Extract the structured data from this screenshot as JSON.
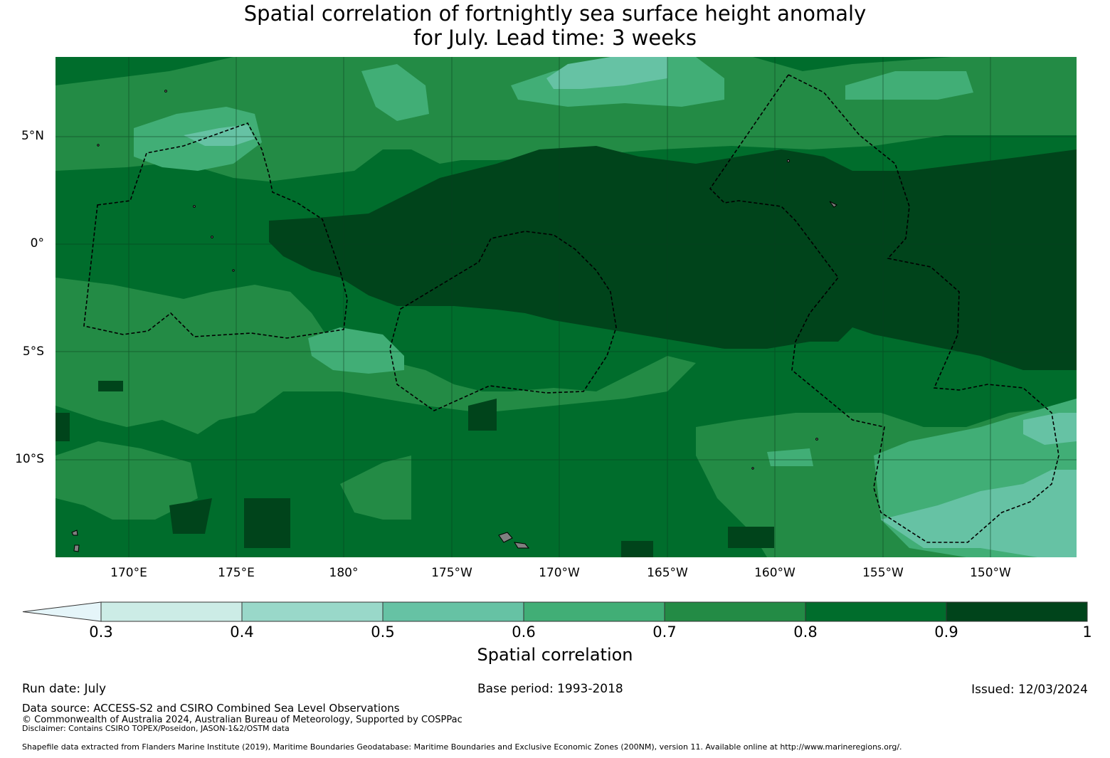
{
  "title": {
    "line1": "Spatial correlation of fortnightly sea surface height anomaly",
    "line2": "for July. Lead time: 3 weeks"
  },
  "map": {
    "lat_labels": [
      "5°N",
      "0°",
      "5°S",
      "10°S"
    ],
    "lon_labels": [
      "170°E",
      "175°E",
      "180°",
      "175°W",
      "170°W",
      "165°W",
      "160°W",
      "155°W",
      "150°W"
    ],
    "background_color": "#006d2c",
    "land_color": "#808080",
    "boundary_style": "dashed black EEZ outlines"
  },
  "colorbar": {
    "label": "Spatial correlation",
    "ticks": [
      "0.3",
      "0.4",
      "0.5",
      "0.6",
      "0.7",
      "0.8",
      "0.9",
      "1"
    ],
    "colors": [
      "#e5f5f9",
      "#ccece6",
      "#99d8c9",
      "#66c2a4",
      "#41ae76",
      "#238b45",
      "#006d2c",
      "#00441b"
    ],
    "extend": "min"
  },
  "footer": {
    "run_date": "Run date: July",
    "base_period": "Base period: 1993-2018",
    "issued": "Issued: 12/03/2024",
    "data_source": "Data source: ACCESS-S2 and CSIRO Combined Sea Level Observations",
    "copyright": "© Commonwealth of Australia 2024, Australian Bureau of Meteorology, Supported by COSPPac",
    "disclaimer": "Disclaimer: Contains CSIRO TOPEX/Poseidon, JASON-1&2/OSTM data",
    "shapefile": "Shapefile data extracted from Flanders Marine Institute (2019), Maritime Boundaries Geodatabase: Maritime Boundaries and Exclusive Economic Zones (200NM), version 11. Available online at http://www.marineregions.org/."
  }
}
